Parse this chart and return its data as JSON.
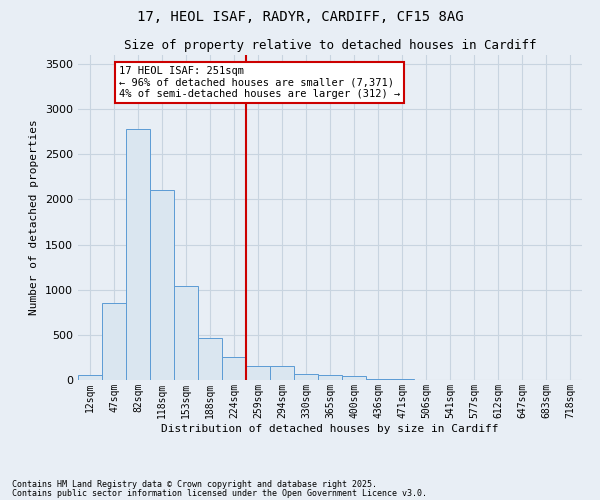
{
  "title_line1": "17, HEOL ISAF, RADYR, CARDIFF, CF15 8AG",
  "title_line2": "Size of property relative to detached houses in Cardiff",
  "xlabel": "Distribution of detached houses by size in Cardiff",
  "ylabel": "Number of detached properties",
  "bar_color": "#dae6f0",
  "bar_edge_color": "#5b9bd5",
  "background_color": "#e8eef5",
  "grid_color": "#c8d4e0",
  "vline_color": "#cc0000",
  "vline_x_index": 7,
  "categories": [
    "12sqm",
    "47sqm",
    "82sqm",
    "118sqm",
    "153sqm",
    "188sqm",
    "224sqm",
    "259sqm",
    "294sqm",
    "330sqm",
    "365sqm",
    "400sqm",
    "436sqm",
    "471sqm",
    "506sqm",
    "541sqm",
    "577sqm",
    "612sqm",
    "647sqm",
    "683sqm",
    "718sqm"
  ],
  "values": [
    60,
    850,
    2780,
    2100,
    1040,
    460,
    250,
    155,
    155,
    70,
    55,
    40,
    15,
    10,
    5,
    5,
    0,
    0,
    0,
    0,
    0
  ],
  "ylim": [
    0,
    3600
  ],
  "yticks": [
    0,
    500,
    1000,
    1500,
    2000,
    2500,
    3000,
    3500
  ],
  "annotation_title": "17 HEOL ISAF: 251sqm",
  "annotation_line2": "← 96% of detached houses are smaller (7,371)",
  "annotation_line3": "4% of semi-detached houses are larger (312) →",
  "annotation_box_edgecolor": "#cc0000",
  "footnote_line1": "Contains HM Land Registry data © Crown copyright and database right 2025.",
  "footnote_line2": "Contains public sector information licensed under the Open Government Licence v3.0.",
  "figsize": [
    6.0,
    5.0
  ],
  "dpi": 100
}
